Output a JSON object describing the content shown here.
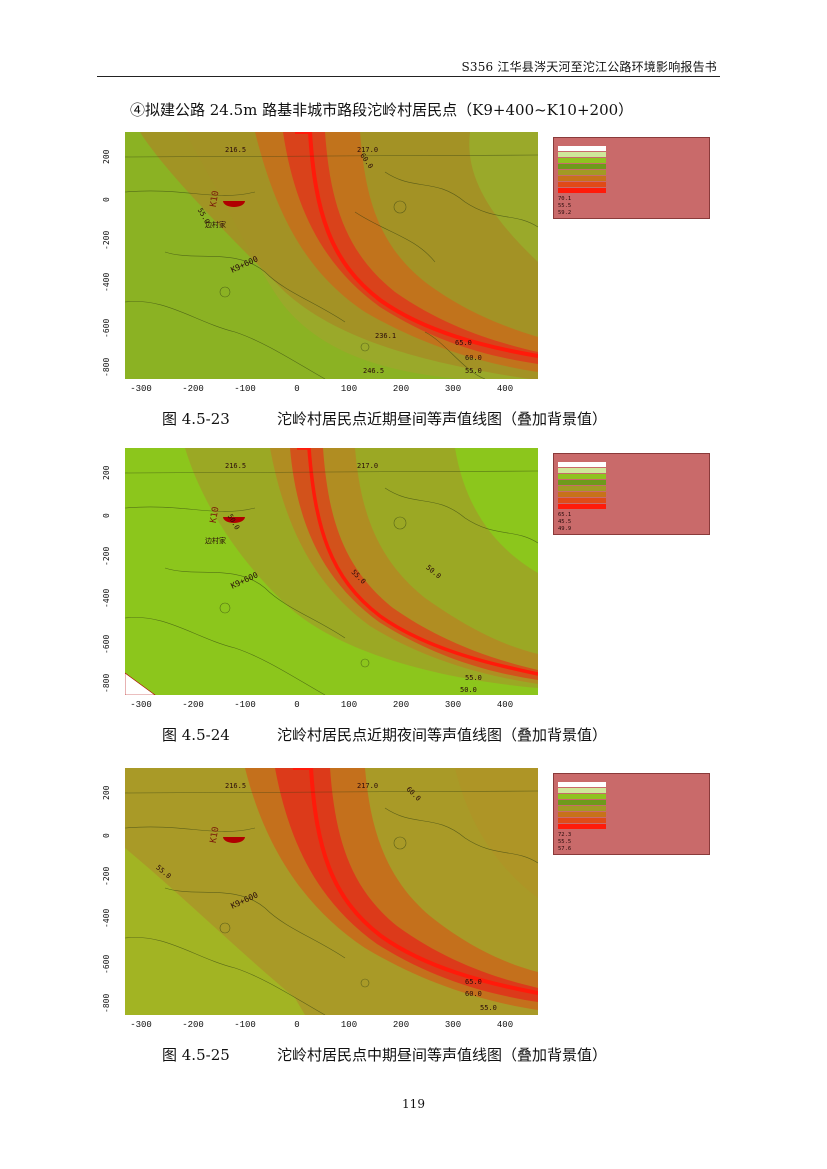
{
  "header": {
    "title": "S356 江华县涔天河至沱江公路环境影响报告书"
  },
  "section_title": "④拟建公路 24.5m 路基非城市路段沱岭村居民点（K9+400~K10+200）",
  "axes": {
    "x_ticks": [
      "-300",
      "-200",
      "-100",
      "0",
      "100",
      "200",
      "300",
      "400"
    ],
    "y_ticks": [
      "200",
      "0",
      "-200",
      "-400",
      "-600",
      "-800"
    ]
  },
  "map_labels": {
    "village": "边村家",
    "elev_1": "216.5",
    "elev_2": "217.0",
    "elev_3": "236.1",
    "elev_4": "246.5",
    "station": "K10",
    "station_2": "K9+600"
  },
  "figures": [
    {
      "number": "图 4.5-23",
      "caption": "沱岭村居民点近期昼间等声值线图（叠加背景值）",
      "legend": {
        "max": "70.1",
        "min": "55.5",
        "avg": "59.2",
        "contours": [
          "55.0",
          "60.0",
          "65.0",
          "60.0",
          "55.0"
        ]
      }
    },
    {
      "number": "图 4.5-24",
      "caption": "沱岭村居民点近期夜间等声值线图（叠加背景值）",
      "legend": {
        "max": "65.1",
        "min": "45.5",
        "avg": "49.9",
        "contours": [
          "50.0",
          "55.0",
          "50.0",
          "55.0",
          "50.0"
        ]
      }
    },
    {
      "number": "图 4.5-25",
      "caption": "沱岭村居民点中期昼间等声值线图（叠加背景值）",
      "legend": {
        "max": "72.3",
        "min": "55.5",
        "avg": "57.6",
        "contours": [
          "55.0",
          "60.0",
          "65.0",
          "60.0",
          "55.0"
        ]
      }
    }
  ],
  "colors": {
    "green_bg": "#8fc31f",
    "olive": "#a29a24",
    "orange_band": "#c7721a",
    "red_core": "#e8261b",
    "legend_bg": "#c96a6a"
  },
  "page_number": "119"
}
